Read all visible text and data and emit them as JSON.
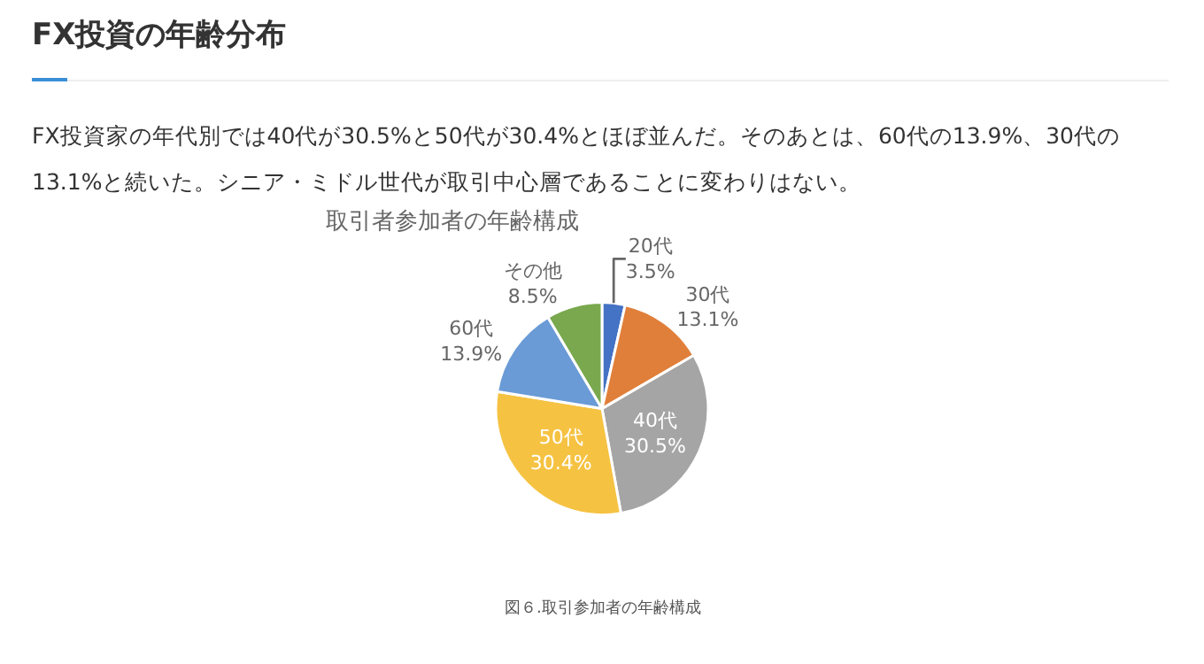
{
  "chart_data": {
    "type": "pie",
    "title": "FX投資の年齢分布",
    "subtitle": "FX投資家の年代別では40代が30.5%と50代が30.4%とほぼ並んだ。そのあとは、60代の13.9%、30代の13.1%と続いた。シニア・ミドル世代が取引中心層であることに変わりはない。",
    "categories": [
      "20代",
      "30代",
      "40代",
      "50代",
      "60代",
      "その他"
    ],
    "values": [
      3.5,
      13.1,
      30.5,
      30.4,
      13.9,
      8.5
    ],
    "value_labels": [
      "3.5%",
      "13.1%",
      "30.5%",
      "30.4%",
      "13.9%",
      "8.5%"
    ],
    "colors": [
      "#4472c4",
      "#e07f3a",
      "#a5a5a5",
      "#f5c242",
      "#6a9bd6",
      "#79a84e"
    ],
    "annotations": [
      "取引者参加者の年齢構成",
      "図６.取引参加者の年齢構成"
    ]
  }
}
